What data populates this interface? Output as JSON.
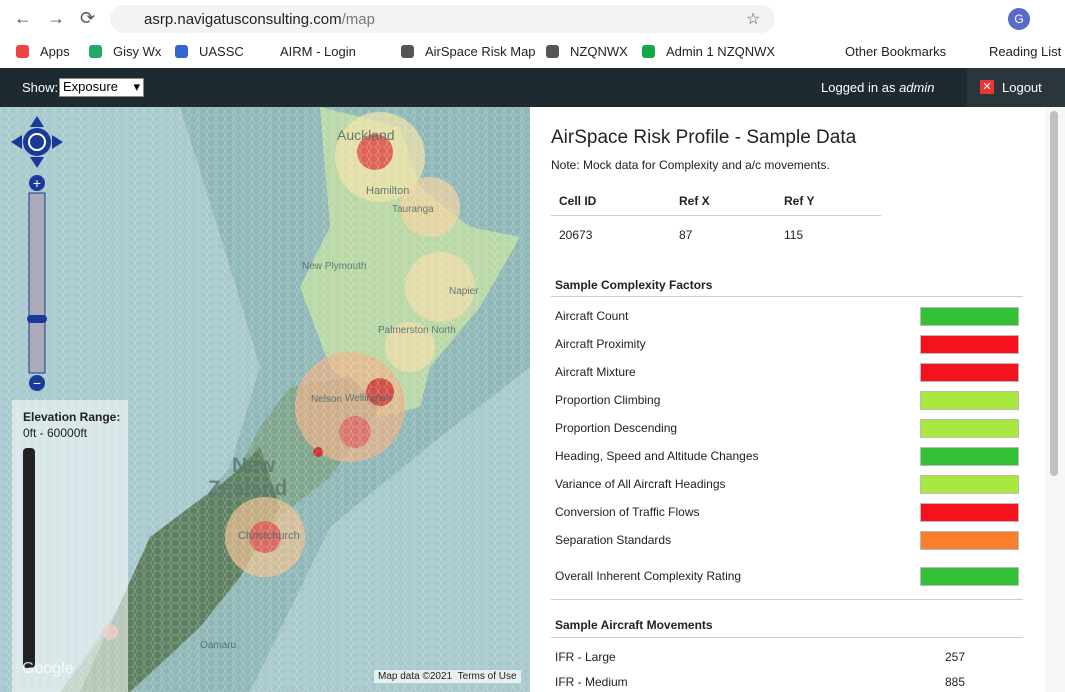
{
  "browser": {
    "url_host": "asrp.navigatusconsulting.com",
    "url_path": "/map",
    "profile": "G",
    "bookmarks": [
      "Apps",
      "Gisy Wx",
      "UASSC",
      "AIRM - Login",
      "AirSpace Risk Map",
      "NZQNWX",
      "Admin 1 NZQNWX"
    ],
    "other_bookmarks": "Other Bookmarks",
    "reading_list": "Reading List"
  },
  "toolbar": {
    "show_label": "Show:",
    "show_value": "Exposure",
    "logged_in": "Logged in as",
    "user": "admin",
    "logout": "Logout"
  },
  "map": {
    "elevation_title": "Elevation Range:",
    "elevation_range": "0ft - 60000ft",
    "labels": [
      "Auckland",
      "Hamilton",
      "Tauranga",
      "New Plymouth",
      "Napier",
      "Palmerston North",
      "Nelson",
      "Wellington",
      "New",
      "Zealand",
      "Christchurch",
      "Oamaru"
    ],
    "attribution": "Map data ©2021",
    "terms": "Terms of Use",
    "logo": "Google"
  },
  "panel": {
    "title": "AirSpace Risk Profile - Sample Data",
    "note": "Note: Mock data for Complexity and a/c movements.",
    "table": {
      "headers": [
        "Cell ID",
        "Ref X",
        "Ref Y"
      ],
      "row": [
        "20673",
        "87",
        "115"
      ]
    },
    "factors_title": "Sample Complexity Factors",
    "factors": [
      {
        "label": "Aircraft Count",
        "color": "#33c037"
      },
      {
        "label": "Aircraft Proximity",
        "color": "#f5121f"
      },
      {
        "label": "Aircraft Mixture",
        "color": "#f5121f"
      },
      {
        "label": "Proportion Climbing",
        "color": "#a9e83f"
      },
      {
        "label": "Proportion Descending",
        "color": "#a9e83f"
      },
      {
        "label": "Heading, Speed and Altitude Changes",
        "color": "#33c037"
      },
      {
        "label": "Variance of All Aircraft Headings",
        "color": "#a9e83f"
      },
      {
        "label": "Conversion of Traffic Flows",
        "color": "#f5121f"
      },
      {
        "label": "Separation Standards",
        "color": "#fa7f2c"
      }
    ],
    "overall": {
      "label": "Overall Inherent Complexity Rating",
      "color": "#33c037"
    },
    "movements_title": "Sample Aircraft Movements",
    "movements": [
      [
        "IFR - Large",
        "257"
      ],
      [
        "IFR - Medium",
        "885"
      ]
    ]
  }
}
